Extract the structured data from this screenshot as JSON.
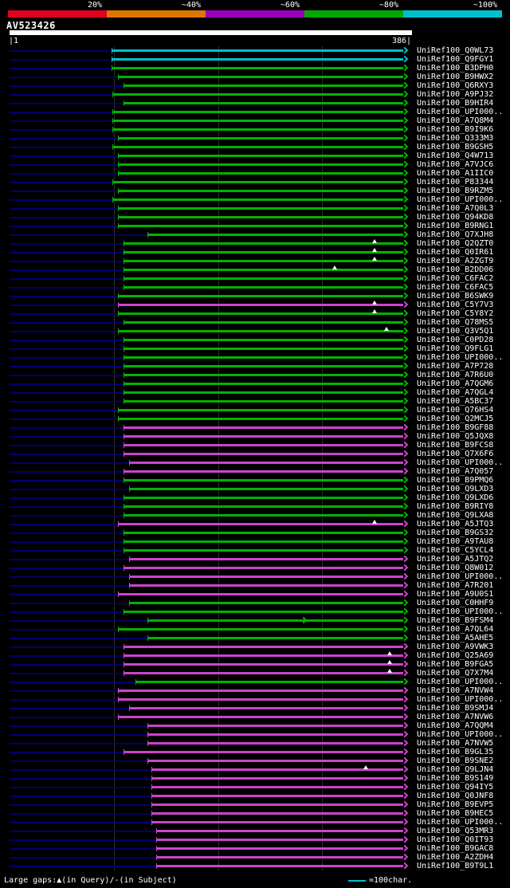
{
  "scale": {
    "segments": [
      {
        "label": "20%",
        "color": "#e00020"
      },
      {
        "label": "~40%",
        "color": "#dd7700"
      },
      {
        "label": "~60%",
        "color": "#9900bb"
      },
      {
        "label": "~80%",
        "color": "#00a800"
      },
      {
        "label": "~100%",
        "color": "#00c0d0"
      }
    ]
  },
  "query": {
    "name": "AV523426",
    "start_label": "|1",
    "end_label": "386|",
    "length": 386
  },
  "legend": {
    "gap_text": "Large gaps:▲(in Query)/-(in Subject)",
    "scale_text": "=100char.",
    "scale_line_color": "#00c0d0"
  },
  "colors": {
    "green": "#00b400",
    "magenta": "#cc44cc",
    "cyan": "#00c0d0",
    "leader": "#000070",
    "grid": "#2c2c2c",
    "text": "#ffffff"
  },
  "chart_data": {
    "type": "table",
    "title": "BLAST hit overview for query AV523426",
    "x_axis": {
      "min": 1,
      "max": 386,
      "units": "residues",
      "gridline_interval": 100
    },
    "hits": [
      {
        "label": "UniRef100_Q0WL73",
        "color": "cyan",
        "start": 98
      },
      {
        "label": "UniRef100_Q9FGY1",
        "color": "cyan",
        "start": 98
      },
      {
        "label": "UniRef100_B3DPH0",
        "color": "green",
        "start": 98
      },
      {
        "label": "UniRef100_B9HWX2",
        "color": "green",
        "start": 104
      },
      {
        "label": "UniRef100_Q6RXY3",
        "color": "green",
        "start": 109
      },
      {
        "label": "UniRef100_A9PJ32",
        "color": "green",
        "start": 99
      },
      {
        "label": "UniRef100_B9HIR4",
        "color": "green",
        "start": 109
      },
      {
        "label": "UniRef100_UPI000..",
        "color": "green",
        "start": 99
      },
      {
        "label": "UniRef100_A7Q8M4",
        "color": "green",
        "start": 99
      },
      {
        "label": "UniRef100_B9I9K6",
        "color": "green",
        "start": 99
      },
      {
        "label": "UniRef100_Q333M3",
        "color": "green",
        "start": 104
      },
      {
        "label": "UniRef100_B9GSH5",
        "color": "green",
        "start": 99
      },
      {
        "label": "UniRef100_Q4W713",
        "color": "green",
        "start": 104
      },
      {
        "label": "UniRef100_A7VJC6",
        "color": "green",
        "start": 104
      },
      {
        "label": "UniRef100_A1IIC0",
        "color": "green",
        "start": 104
      },
      {
        "label": "UniRef100_P83344",
        "color": "green",
        "start": 99
      },
      {
        "label": "UniRef100_B9RZM5",
        "color": "green",
        "start": 104
      },
      {
        "label": "UniRef100_UPI000..",
        "color": "green",
        "start": 99
      },
      {
        "label": "UniRef100_A7Q0L3",
        "color": "green",
        "start": 104
      },
      {
        "label": "UniRef100_Q94KD8",
        "color": "green",
        "start": 104
      },
      {
        "label": "UniRef100_B9RNG1",
        "color": "green",
        "start": 104
      },
      {
        "label": "UniRef100_Q7XJH8",
        "color": "green",
        "start": 132
      },
      {
        "label": "UniRef100_Q2QZT0",
        "color": "green",
        "start": 109,
        "gaps": [
          350
        ]
      },
      {
        "label": "UniRef100_Q0IR61",
        "color": "green",
        "start": 109,
        "gaps": [
          350
        ]
      },
      {
        "label": "UniRef100_A2ZGT9",
        "color": "green",
        "start": 109,
        "gaps": [
          350
        ]
      },
      {
        "label": "UniRef100_B2DD06",
        "color": "green",
        "start": 109,
        "gaps": [
          312
        ]
      },
      {
        "label": "UniRef100_C6FAC2",
        "color": "green",
        "start": 109
      },
      {
        "label": "UniRef100_C6FAC5",
        "color": "green",
        "start": 109
      },
      {
        "label": "UniRef100_B6SWK9",
        "color": "green",
        "start": 104
      },
      {
        "label": "UniRef100_C5Y7V3",
        "color": "magenta",
        "start": 104,
        "gaps": [
          350
        ]
      },
      {
        "label": "UniRef100_C5Y8Y2",
        "color": "green",
        "start": 104,
        "gaps": [
          350
        ]
      },
      {
        "label": "UniRef100_Q78MS5",
        "color": "green",
        "start": 109
      },
      {
        "label": "UniRef100_Q3V5Q1",
        "color": "green",
        "start": 104,
        "gaps": [
          362
        ]
      },
      {
        "label": "UniRef100_C0PD28",
        "color": "green",
        "start": 109
      },
      {
        "label": "UniRef100_Q9FLG1",
        "color": "green",
        "start": 109
      },
      {
        "label": "UniRef100_UPI000..",
        "color": "green",
        "start": 109
      },
      {
        "label": "UniRef100_A7P728",
        "color": "green",
        "start": 109
      },
      {
        "label": "UniRef100_A7R6U0",
        "color": "green",
        "start": 109
      },
      {
        "label": "UniRef100_A7QGM6",
        "color": "green",
        "start": 109
      },
      {
        "label": "UniRef100_A7QGL4",
        "color": "green",
        "start": 109
      },
      {
        "label": "UniRef100_A5BC37",
        "color": "green",
        "start": 109
      },
      {
        "label": "UniRef100_Q76HS4",
        "color": "green",
        "start": 104
      },
      {
        "label": "UniRef100_Q2MCJ5",
        "color": "green",
        "start": 104
      },
      {
        "label": "UniRef100_B9GF88",
        "color": "magenta",
        "start": 109
      },
      {
        "label": "UniRef100_Q5JQX8",
        "color": "magenta",
        "start": 109
      },
      {
        "label": "UniRef100_B9FCS8",
        "color": "magenta",
        "start": 109
      },
      {
        "label": "UniRef100_Q7X6F6",
        "color": "magenta",
        "start": 109
      },
      {
        "label": "UniRef100_UPI000..",
        "color": "magenta",
        "start": 115
      },
      {
        "label": "UniRef100_A7Q057",
        "color": "magenta",
        "start": 109
      },
      {
        "label": "UniRef100_B9PMQ6",
        "color": "green",
        "start": 109
      },
      {
        "label": "UniRef100_Q9LXD3",
        "color": "green",
        "start": 115
      },
      {
        "label": "UniRef100_Q9LXD6",
        "color": "green",
        "start": 109
      },
      {
        "label": "UniRef100_B9RIY8",
        "color": "green",
        "start": 109
      },
      {
        "label": "UniRef100_Q9LXA8",
        "color": "green",
        "start": 109
      },
      {
        "label": "UniRef100_A5JTQ3",
        "color": "magenta",
        "start": 104,
        "gaps": [
          350
        ]
      },
      {
        "label": "UniRef100_B9GS32",
        "color": "green",
        "start": 109
      },
      {
        "label": "UniRef100_A9TAU8",
        "color": "green",
        "start": 109
      },
      {
        "label": "UniRef100_C5YCL4",
        "color": "green",
        "start": 109
      },
      {
        "label": "UniRef100_A5JTQ2",
        "color": "magenta",
        "start": 115
      },
      {
        "label": "UniRef100_Q8W012",
        "color": "magenta",
        "start": 109
      },
      {
        "label": "UniRef100_UPI000..",
        "color": "magenta",
        "start": 115
      },
      {
        "label": "UniRef100_A7R201",
        "color": "magenta",
        "start": 115
      },
      {
        "label": "UniRef100_A9U0S1",
        "color": "magenta",
        "start": 104
      },
      {
        "label": "UniRef100_C0HHF9",
        "color": "green",
        "start": 115
      },
      {
        "label": "UniRef100_UPI000..",
        "color": "green",
        "start": 109
      },
      {
        "label": "UniRef100_B9FSM4",
        "color": "green",
        "start": 132,
        "arrows": [
          280
        ]
      },
      {
        "label": "UniRef100_A7QL64",
        "color": "green",
        "start": 104
      },
      {
        "label": "UniRef100_A5AHE5",
        "color": "green",
        "start": 132
      },
      {
        "label": "UniRef100_A9VWK3",
        "color": "magenta",
        "start": 109
      },
      {
        "label": "UniRef100_Q25A69",
        "color": "magenta",
        "start": 109,
        "gaps": [
          365
        ]
      },
      {
        "label": "UniRef100_B9FGA5",
        "color": "magenta",
        "start": 109,
        "gaps": [
          365
        ]
      },
      {
        "label": "UniRef100_Q7X7M4",
        "color": "magenta",
        "start": 109,
        "gaps": [
          365
        ]
      },
      {
        "label": "UniRef100_UPI000..",
        "color": "green",
        "start": 121
      },
      {
        "label": "UniRef100_A7NVW4",
        "color": "magenta",
        "start": 104
      },
      {
        "label": "UniRef100_UPI000..",
        "color": "magenta",
        "start": 104
      },
      {
        "label": "UniRef100_B9SMJ4",
        "color": "magenta",
        "start": 115
      },
      {
        "label": "UniRef100_A7NVW6",
        "color": "magenta",
        "start": 104
      },
      {
        "label": "UniRef100_A7QQM4",
        "color": "magenta",
        "start": 132
      },
      {
        "label": "UniRef100_UPI000..",
        "color": "magenta",
        "start": 132
      },
      {
        "label": "UniRef100_A7NVW5",
        "color": "magenta",
        "start": 132
      },
      {
        "label": "UniRef100_B9GL35",
        "color": "magenta",
        "start": 109
      },
      {
        "label": "UniRef100_B9SNE2",
        "color": "magenta",
        "start": 132
      },
      {
        "label": "UniRef100_Q9LJN4",
        "color": "magenta",
        "start": 136,
        "gaps": [
          342
        ]
      },
      {
        "label": "UniRef100_B9S149",
        "color": "magenta",
        "start": 136
      },
      {
        "label": "UniRef100_Q94IY5",
        "color": "magenta",
        "start": 136
      },
      {
        "label": "UniRef100_Q0JNF8",
        "color": "magenta",
        "start": 136
      },
      {
        "label": "UniRef100_B9EVP5",
        "color": "magenta",
        "start": 136
      },
      {
        "label": "UniRef100_B9HEC5",
        "color": "magenta",
        "start": 136
      },
      {
        "label": "UniRef100_UPI000..",
        "color": "magenta",
        "start": 136
      },
      {
        "label": "UniRef100_Q53MR3",
        "color": "magenta",
        "start": 141
      },
      {
        "label": "UniRef100_Q0IT93",
        "color": "magenta",
        "start": 141
      },
      {
        "label": "UniRef100_B9GAC8",
        "color": "magenta",
        "start": 141
      },
      {
        "label": "UniRef100_A2ZDH4",
        "color": "magenta",
        "start": 141
      },
      {
        "label": "UniRef100_B9T9L1",
        "color": "magenta",
        "start": 141
      }
    ]
  }
}
